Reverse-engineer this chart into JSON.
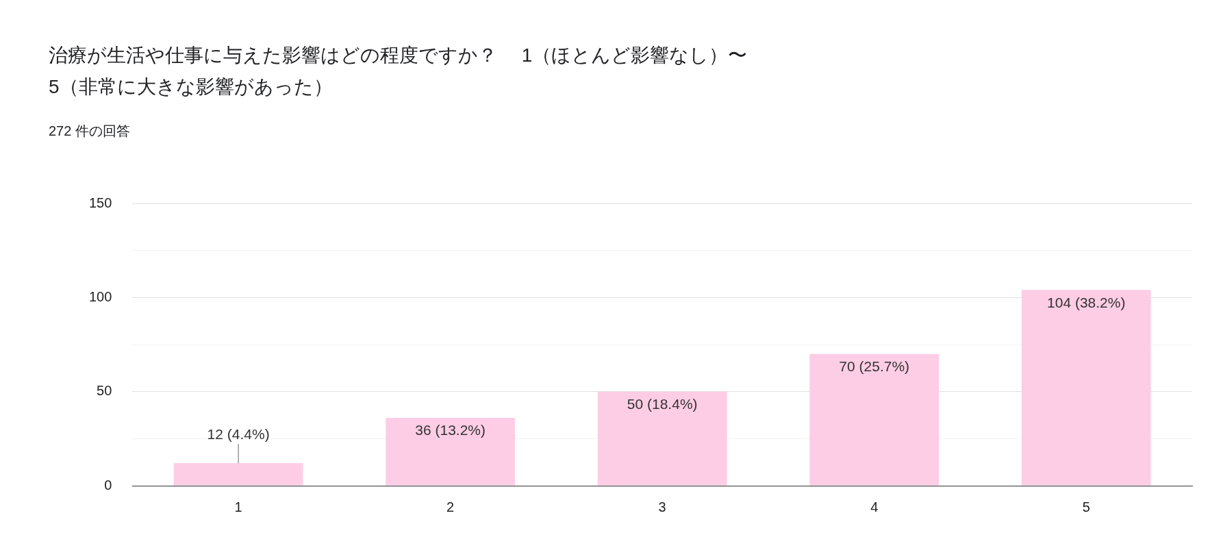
{
  "chart_data": {
    "type": "bar",
    "title": "治療が生活や仕事に与えた影響はどの程度ですか？　 1（ほとんど影響なし）〜\n5（非常に大きな影響があった）",
    "subtitle": "272 件の回答",
    "categories": [
      "1",
      "2",
      "3",
      "4",
      "5"
    ],
    "values": [
      12,
      36,
      50,
      70,
      104
    ],
    "value_labels": [
      "12 (4.4%)",
      "36 (13.2%)",
      "50 (18.4%)",
      "70 (25.7%)",
      "104 (38.2%)"
    ],
    "color": "#fdcde5",
    "ylim": [
      0,
      150
    ],
    "yticks": [
      0,
      {
        "value": 25,
        "label": null
      },
      50,
      {
        "value": 75,
        "label": null
      },
      100,
      {
        "value": 125,
        "label": null
      },
      150
    ],
    "grid": "y",
    "legend": false
  }
}
